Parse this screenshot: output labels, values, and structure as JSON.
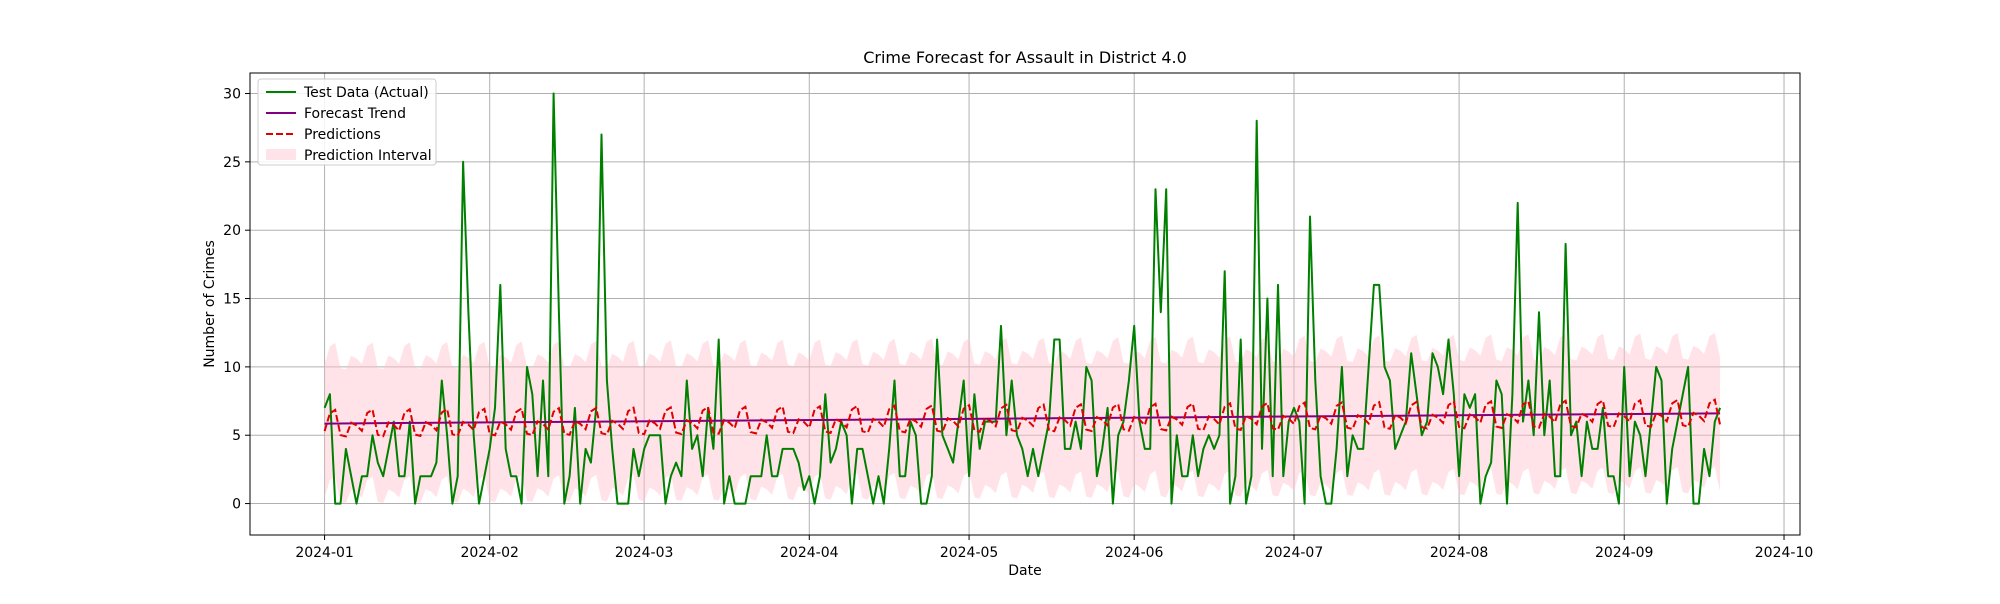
{
  "chart_data": {
    "type": "line",
    "title": "Crime Forecast for Assault in District 4.0",
    "xlabel": "Date",
    "ylabel": "Number of Crimes",
    "xlim": [
      "2023-12-18",
      "2024-10-04"
    ],
    "ylim": [
      -2.3,
      31.5
    ],
    "x_ticks": [
      "2024-01-01",
      "2024-02-01",
      "2024-03-01",
      "2024-04-01",
      "2024-05-01",
      "2024-06-01",
      "2024-07-01",
      "2024-08-01",
      "2024-09-01",
      "2024-10-01"
    ],
    "x_tick_labels": [
      "2024-01",
      "2024-02",
      "2024-03",
      "2024-04",
      "2024-05",
      "2024-06",
      "2024-07",
      "2024-08",
      "2024-09",
      "2024-10"
    ],
    "y_ticks": [
      0,
      5,
      10,
      15,
      20,
      25,
      30
    ],
    "grid": true,
    "legend_position": "top-left",
    "start_date": "2024-01-01",
    "series": [
      {
        "name": "Test Data (Actual)",
        "kind": "line",
        "color": "#008000",
        "values": [
          7,
          8,
          0,
          0,
          4,
          2,
          0,
          2,
          2,
          5,
          3,
          2,
          4,
          6,
          2,
          2,
          6,
          0,
          2,
          2,
          2,
          3,
          9,
          5,
          0,
          2,
          25,
          14,
          5,
          0,
          2,
          4,
          7,
          16,
          4,
          2,
          2,
          0,
          10,
          8,
          2,
          9,
          2,
          30,
          14,
          0,
          2,
          7,
          0,
          4,
          3,
          7,
          27,
          9,
          4,
          0,
          0,
          0,
          4,
          2,
          4,
          5,
          5,
          5,
          0,
          2,
          3,
          2,
          9,
          4,
          5,
          2,
          7,
          4,
          12,
          0,
          2,
          0,
          0,
          0,
          2,
          2,
          2,
          5,
          2,
          2,
          4,
          4,
          4,
          3,
          1,
          2,
          0,
          2,
          8,
          3,
          4,
          6,
          5,
          0,
          4,
          4,
          2,
          0,
          2,
          0,
          4,
          9,
          2,
          2,
          6,
          5,
          0,
          0,
          2,
          12,
          5,
          4,
          3,
          6,
          9,
          2,
          8,
          4,
          6,
          6,
          6,
          13,
          5,
          9,
          5,
          4,
          2,
          4,
          2,
          4,
          6,
          12,
          12,
          4,
          4,
          6,
          4,
          10,
          9,
          2,
          4,
          7,
          0,
          5,
          6,
          9,
          13,
          6,
          4,
          4,
          23,
          14,
          23,
          0,
          5,
          2,
          2,
          5,
          2,
          4,
          5,
          4,
          5,
          17,
          0,
          2,
          12,
          0,
          2,
          28,
          4,
          15,
          2,
          16,
          2,
          6,
          7,
          6,
          0,
          21,
          9,
          2,
          0,
          0,
          4,
          10,
          2,
          5,
          4,
          4,
          10,
          16,
          16,
          10,
          9,
          4,
          5,
          6,
          11,
          8,
          5,
          6,
          11,
          10,
          8,
          12,
          8,
          2,
          8,
          7,
          8,
          0,
          2,
          3,
          9,
          8,
          0,
          8,
          22,
          6,
          9,
          5,
          14,
          5,
          9,
          2,
          2,
          19,
          5,
          6,
          2,
          6,
          4,
          4,
          7,
          2,
          2,
          0,
          10,
          2,
          6,
          5,
          2,
          6,
          10,
          9,
          0,
          4,
          6,
          8,
          10,
          0,
          0,
          4,
          2,
          6,
          7
        ]
      },
      {
        "name": "Forecast Trend",
        "kind": "line",
        "color": "#800080",
        "start": 5.85,
        "end": 6.6
      },
      {
        "name": "Predictions",
        "kind": "dashed-line",
        "color": "#e00000",
        "pattern": [
          -0.85,
          -0.95,
          0.05,
          -0.15,
          -0.55,
          0.75,
          1.0
        ],
        "pattern_phase": 4
      },
      {
        "name": "Prediction Interval",
        "kind": "band",
        "color": "#ffc0cb",
        "half_width": 4.9
      }
    ]
  }
}
